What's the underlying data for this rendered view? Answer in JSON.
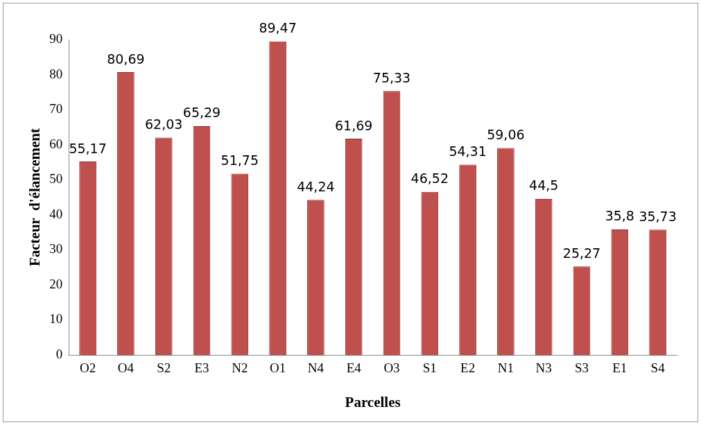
{
  "chart_data": {
    "type": "bar",
    "xlabel": "Parcelles",
    "ylabel": "Facteur  d'élancement",
    "categories": [
      "O2",
      "O4",
      "S2",
      "E3",
      "N2",
      "O1",
      "N4",
      "E4",
      "O3",
      "S1",
      "E2",
      "N1",
      "N3",
      "S3",
      "E1",
      "S4"
    ],
    "values": [
      55.17,
      80.69,
      62.03,
      65.29,
      51.75,
      89.47,
      44.24,
      61.69,
      75.33,
      46.52,
      54.31,
      59.06,
      44.5,
      25.27,
      35.8,
      35.73
    ],
    "value_labels": [
      "55,17",
      "80,69",
      "62,03",
      "65,29",
      "51,75",
      "89,47",
      "44,24",
      "61,69",
      "75,33",
      "46,52",
      "54,31",
      "59,06",
      "44,5",
      "25,27",
      "35,8",
      "35,73"
    ],
    "color": "#c0504d",
    "ylim": [
      0,
      90
    ],
    "yticks": [
      0,
      10,
      20,
      30,
      40,
      50,
      60,
      70,
      80,
      90
    ],
    "grid": false,
    "legend": false
  }
}
